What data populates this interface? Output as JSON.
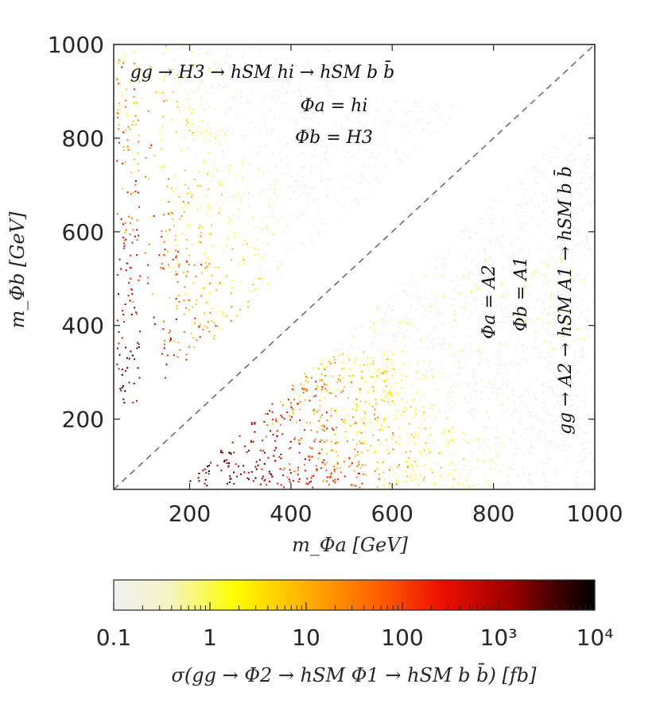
{
  "chart_data": {
    "type": "scatter",
    "description_free": true,
    "xlabel": "m_Φa [GeV]",
    "ylabel": "m_Φb [GeV]",
    "xlim": [
      50,
      1000
    ],
    "ylim": [
      50,
      1000
    ],
    "x_ticks": [
      200,
      400,
      600,
      800,
      1000
    ],
    "y_ticks": [
      200,
      400,
      600,
      800,
      1000
    ],
    "x_tick_labels": [
      "200",
      "400",
      "600",
      "800",
      "1000"
    ],
    "y_tick_labels": [
      "200",
      "400",
      "600",
      "800",
      "1000"
    ],
    "diagonal_reference": "dashed y = x",
    "regions": [
      {
        "name": "upper-left",
        "condition": "m_Φb > m_Φa + 125",
        "annotation_lines": [
          "gg → H3 → hSM hi → hSM b b̄",
          "Φa = hi",
          "Φb = H3"
        ]
      },
      {
        "name": "lower-right",
        "condition": "m_Φa > m_Φb + 125",
        "colored_below_m_Φb": 345,
        "annotation_lines": [
          "Φa = A2",
          "Φb = A1",
          "gg → A2 → hSM A1 → hSM b b̄"
        ]
      }
    ],
    "colorbar": {
      "scale": "log",
      "range": [
        0.1,
        10000
      ],
      "tick_labels": [
        "0.1",
        "1",
        "10",
        "100",
        "10³",
        "10⁴"
      ],
      "tick_values": [
        0.1,
        1,
        10,
        100,
        1000,
        10000
      ],
      "label": "σ(gg → Φ2 → hSM Φ1 → hSM b b̄) [fb]",
      "colors": [
        "#f0f0f0",
        "#f7f4b0",
        "#ffff00",
        "#ffc000",
        "#ff7000",
        "#ee1000",
        "#b00000",
        "#500000",
        "#000000"
      ]
    }
  }
}
